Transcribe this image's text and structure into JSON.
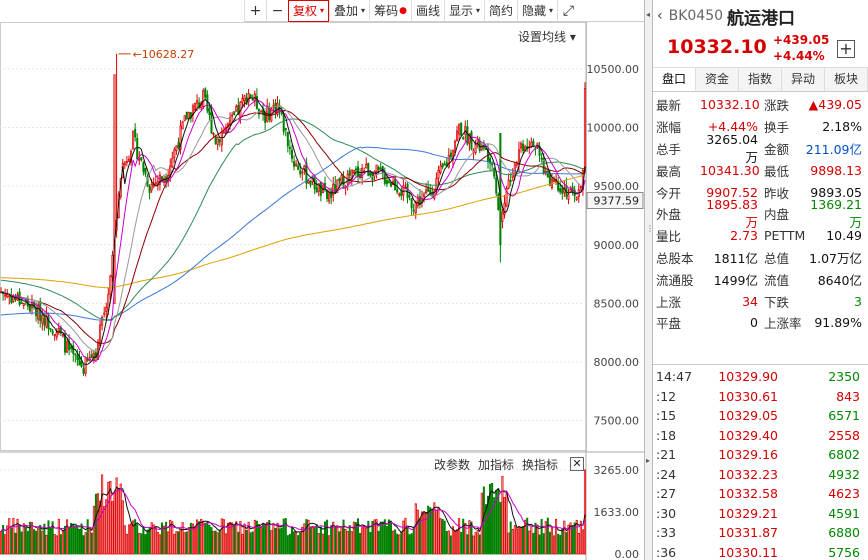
{
  "toolbar": {
    "buttons": [
      {
        "label": "+",
        "icon": "plus-icon",
        "sel": false,
        "sq": true
      },
      {
        "label": "−",
        "icon": "minus-icon",
        "sel": false,
        "sq": true
      },
      {
        "label": "复权",
        "arrow": true,
        "sel": true
      },
      {
        "label": "叠加",
        "arrow": true
      },
      {
        "label": "筹码",
        "dot": true
      },
      {
        "label": "画线"
      },
      {
        "label": "显示",
        "arrow": true
      },
      {
        "label": "简约"
      },
      {
        "label": "隐藏",
        "arrow": true
      },
      {
        "label": "⤢",
        "icon": "fullscreen-icon",
        "sq": true
      }
    ]
  },
  "chart_settings": {
    "ma_label": "设置均线 ▾"
  },
  "chart_data": {
    "type": "candlestick",
    "price_axis": [
      "10500.00",
      "10000.00",
      "9500.00",
      "9000.00",
      "8500.00",
      "8000.00",
      "7500.00"
    ],
    "price_range": [
      7250,
      10900
    ],
    "last_price_tag": "9377.59",
    "high_marker": "10628.27",
    "volume_axis": [
      "3265.00",
      "1633.00",
      "0.00"
    ],
    "volume_max": 3265,
    "colors": {
      "up": "#e00000",
      "down": "#008000",
      "ma5": "#111111",
      "ma10": "#cc00cc",
      "ma20": "#999999",
      "ma30": "#8b0000",
      "ma60": "#2e8b57",
      "ma120": "#3a78d8",
      "ma250": "#e0a000"
    }
  },
  "volume_tools": {
    "change_params": "改参数",
    "add_indicator": "加指标",
    "switch_indicator": "换指标",
    "close": "✕"
  },
  "panel": {
    "code": "BK0450",
    "name": "航运港口",
    "price": "10332.10",
    "change": "+439.05",
    "change_pct": "+4.44%",
    "tabs": [
      "盘口",
      "资金",
      "指数",
      "异动",
      "板块"
    ],
    "stats": [
      {
        "l1": "最新",
        "v1": "10332.10",
        "c1": "red",
        "l2": "涨跌",
        "v2": "▲439.05",
        "c2": "red"
      },
      {
        "l1": "涨幅",
        "v1": "+4.44%",
        "c1": "red",
        "l2": "换手",
        "v2": "2.18%",
        "c2": "blk"
      },
      {
        "l1": "总手",
        "v1": "3265.04万",
        "c1": "blk",
        "l2": "金额",
        "v2": "211.09亿",
        "c2": "blu"
      },
      {
        "l1": "最高",
        "v1": "10341.30",
        "c1": "red",
        "l2": "最低",
        "v2": "9898.13",
        "c2": "red"
      },
      {
        "l1": "今开",
        "v1": "9907.52",
        "c1": "red",
        "l2": "昨收",
        "v2": "9893.05",
        "c2": "blk"
      },
      {
        "l1": "外盘",
        "v1": "1895.83万",
        "c1": "red",
        "l2": "内盘",
        "v2": "1369.21万",
        "c2": "grn"
      },
      {
        "l1": "量比",
        "v1": "2.73",
        "c1": "red",
        "l2": "PETTM",
        "v2": "10.49",
        "c2": "blk"
      },
      {
        "l1": "总股本",
        "v1": "1811亿",
        "c1": "blk",
        "l2": "总值",
        "v2": "1.07万亿",
        "c2": "blk"
      },
      {
        "l1": "流通股",
        "v1": "1499亿",
        "c1": "blk",
        "l2": "流值",
        "v2": "8640亿",
        "c2": "blk"
      },
      {
        "l1": "上涨",
        "v1": "34",
        "c1": "red",
        "l2": "下跌",
        "v2": "3",
        "c2": "grn"
      },
      {
        "l1": "平盘",
        "v1": "0",
        "c1": "blk",
        "l2": "上涨率",
        "v2": "91.89%",
        "c2": "blk"
      }
    ],
    "ticks": [
      {
        "t": "14:47",
        "p": "10329.90",
        "v": "2350"
      },
      {
        "t": ":12",
        "p": "10330.61",
        "v": "843"
      },
      {
        "t": ":15",
        "p": "10329.05",
        "v": "6571"
      },
      {
        "t": ":18",
        "p": "10329.40",
        "v": "2558"
      },
      {
        "t": ":21",
        "p": "10329.16",
        "v": "6802"
      },
      {
        "t": ":24",
        "p": "10332.23",
        "v": "4932"
      },
      {
        "t": ":27",
        "p": "10332.58",
        "v": "4623"
      },
      {
        "t": ":30",
        "p": "10329.21",
        "v": "4591"
      },
      {
        "t": ":33",
        "p": "10331.87",
        "v": "6880"
      },
      {
        "t": ":36",
        "p": "10330.11",
        "v": "5756"
      }
    ]
  }
}
